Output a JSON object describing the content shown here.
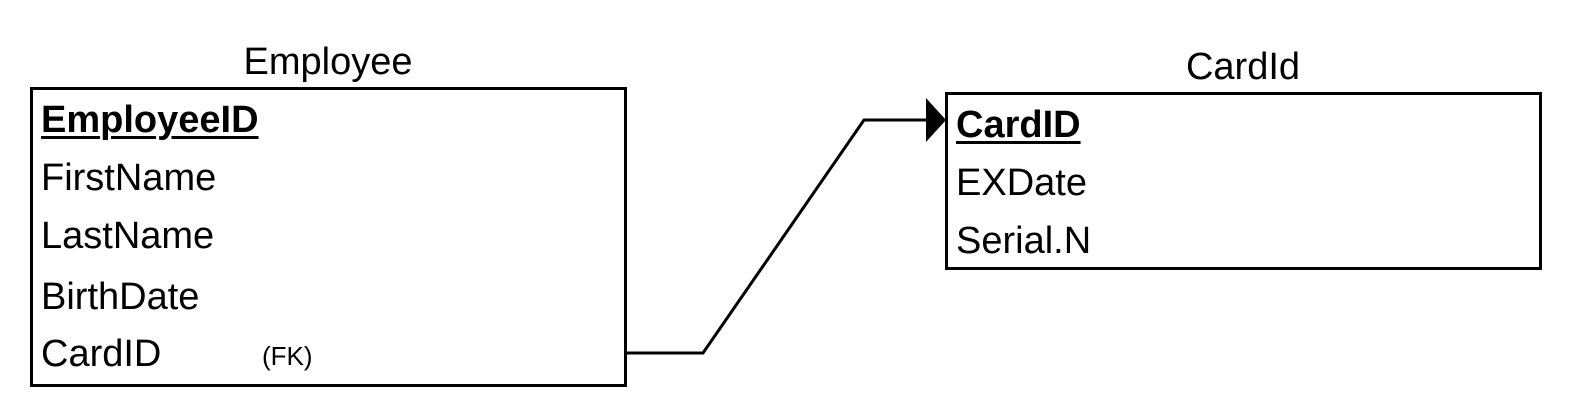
{
  "entities": {
    "employee": {
      "title": "Employee",
      "fields": [
        "EmployeeID",
        "FirstName",
        "LastName",
        "BirthDate",
        "CardID"
      ],
      "primary_key": "EmployeeID",
      "fk_label": "(FK)"
    },
    "card": {
      "title": "CardId",
      "fields": [
        "CardID",
        "EXDate",
        "Serial.N"
      ],
      "primary_key": "CardID"
    }
  },
  "relationship": {
    "from": "Employee.CardID",
    "to": "CardId.CardID",
    "arrow": "filled-arrowhead"
  }
}
